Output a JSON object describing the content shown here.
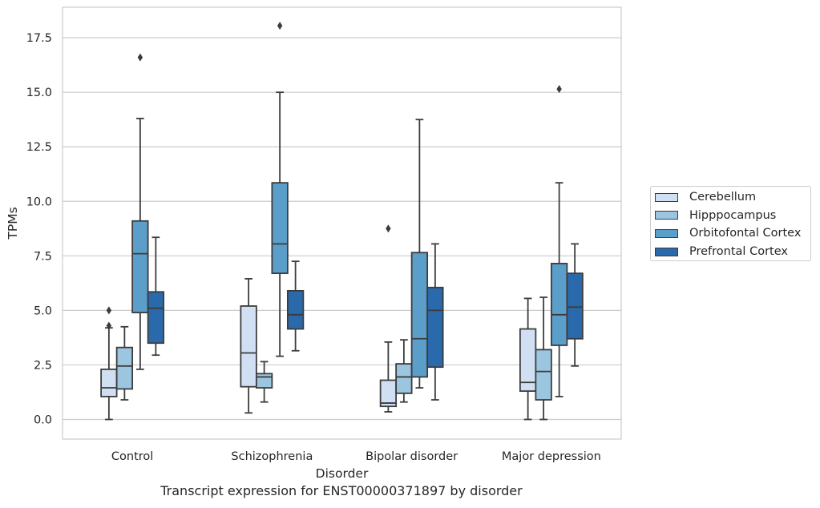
{
  "chart_data": {
    "type": "box",
    "caption": "Transcript expression for ENST00000371897 by disorder",
    "xlabel": "Disorder",
    "ylabel": "TPMs",
    "ylim": [
      -0.9,
      18.9
    ],
    "yticks": [
      0.0,
      2.5,
      5.0,
      7.5,
      10.0,
      12.5,
      15.0,
      17.5
    ],
    "ytick_labels": [
      "0.0",
      "2.5",
      "5.0",
      "7.5",
      "10.0",
      "12.5",
      "15.0",
      "17.5"
    ],
    "grid": "horizontal",
    "legend_position": "outside-right",
    "categories": [
      "Control",
      "Schizophrenia",
      "Bipolar disorder",
      "Major depression"
    ],
    "series": [
      {
        "name": "Cerebellum",
        "color": "#d0e0f2",
        "boxes": [
          {
            "whisker_low": 0.0,
            "q1": 1.05,
            "median": 1.45,
            "q3": 2.3,
            "whisker_high": 4.2,
            "outliers": [
              4.3,
              5.0
            ]
          },
          {
            "whisker_low": 0.3,
            "q1": 1.5,
            "median": 3.05,
            "q3": 5.2,
            "whisker_high": 6.45,
            "outliers": []
          },
          {
            "whisker_low": 0.35,
            "q1": 0.6,
            "median": 0.75,
            "q3": 1.8,
            "whisker_high": 3.55,
            "outliers": [
              8.75
            ]
          },
          {
            "whisker_low": 0.0,
            "q1": 1.3,
            "median": 1.7,
            "q3": 4.15,
            "whisker_high": 5.55,
            "outliers": []
          }
        ]
      },
      {
        "name": "Hipppocampus",
        "color": "#9cc6e0",
        "boxes": [
          {
            "whisker_low": 0.9,
            "q1": 1.4,
            "median": 2.45,
            "q3": 3.3,
            "whisker_high": 4.25,
            "outliers": []
          },
          {
            "whisker_low": 0.8,
            "q1": 1.45,
            "median": 1.95,
            "q3": 2.1,
            "whisker_high": 2.65,
            "outliers": []
          },
          {
            "whisker_low": 0.8,
            "q1": 1.2,
            "median": 1.95,
            "q3": 2.55,
            "whisker_high": 3.65,
            "outliers": []
          },
          {
            "whisker_low": 0.0,
            "q1": 0.9,
            "median": 2.2,
            "q3": 3.2,
            "whisker_high": 5.6,
            "outliers": []
          }
        ]
      },
      {
        "name": "Orbitofontal Cortex",
        "color": "#5b9ec9",
        "boxes": [
          {
            "whisker_low": 2.3,
            "q1": 4.9,
            "median": 7.6,
            "q3": 9.1,
            "whisker_high": 13.8,
            "outliers": [
              16.6
            ]
          },
          {
            "whisker_low": 2.9,
            "q1": 6.7,
            "median": 8.05,
            "q3": 10.85,
            "whisker_high": 15.0,
            "outliers": [
              18.05
            ]
          },
          {
            "whisker_low": 1.45,
            "q1": 1.95,
            "median": 3.7,
            "q3": 7.65,
            "whisker_high": 13.75,
            "outliers": []
          },
          {
            "whisker_low": 1.05,
            "q1": 3.4,
            "median": 4.8,
            "q3": 7.15,
            "whisker_high": 10.85,
            "outliers": [
              15.15
            ]
          }
        ]
      },
      {
        "name": "Prefrontal Cortex",
        "color": "#2a69ac",
        "boxes": [
          {
            "whisker_low": 2.95,
            "q1": 3.5,
            "median": 5.1,
            "q3": 5.85,
            "whisker_high": 8.35,
            "outliers": []
          },
          {
            "whisker_low": 3.15,
            "q1": 4.15,
            "median": 4.8,
            "q3": 5.9,
            "whisker_high": 7.25,
            "outliers": []
          },
          {
            "whisker_low": 0.9,
            "q1": 2.4,
            "median": 5.0,
            "q3": 6.05,
            "whisker_high": 8.05,
            "outliers": []
          },
          {
            "whisker_low": 2.45,
            "q1": 3.7,
            "median": 5.15,
            "q3": 6.7,
            "whisker_high": 8.05,
            "outliers": []
          }
        ]
      }
    ]
  }
}
